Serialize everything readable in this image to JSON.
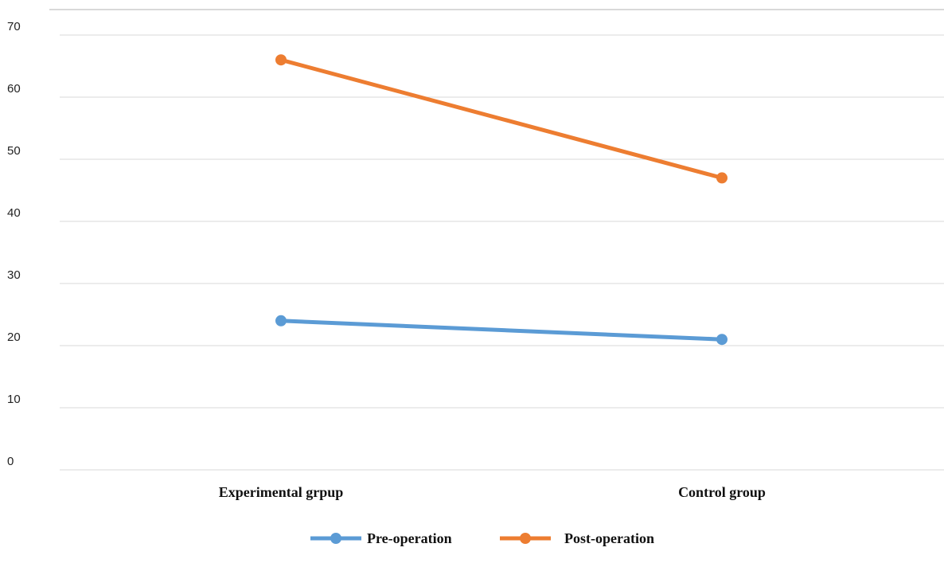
{
  "chart_data": {
    "type": "line",
    "categories": [
      "Experimental grpup",
      "Control group"
    ],
    "series": [
      {
        "name": "Pre-operation",
        "values": [
          24,
          21
        ],
        "color": "#5b9bd5"
      },
      {
        "name": "Post-operation",
        "values": [
          66,
          47
        ],
        "color": "#ed7d31"
      }
    ],
    "yticks": [
      "0",
      "10",
      "20",
      "30",
      "40",
      "50",
      "60",
      "70"
    ],
    "ylim": [
      0,
      70
    ],
    "grid": true,
    "legend_position": "bottom"
  }
}
